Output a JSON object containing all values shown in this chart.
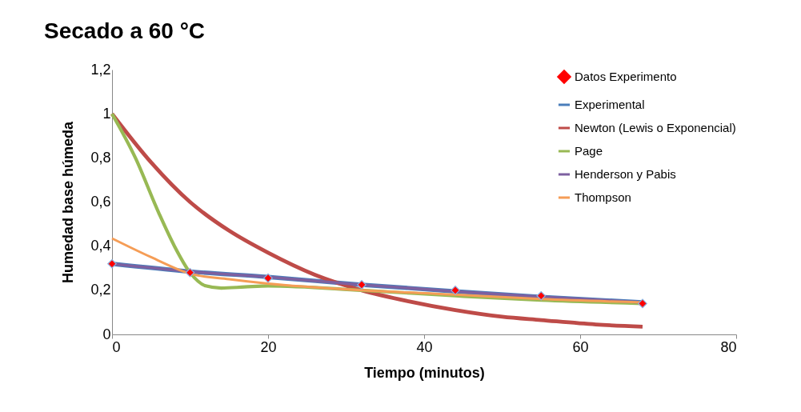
{
  "chart_data": {
    "type": "line",
    "title": "Secado a 60 °C",
    "xlabel": "Tiempo (minutos)",
    "ylabel": "Humedad base húmeda",
    "xlim": [
      0,
      80
    ],
    "xticks": [
      0,
      20,
      40,
      60,
      80
    ],
    "ylim": [
      0,
      1.2
    ],
    "yticks": [
      0,
      {
        "value": 0.2,
        "label": "0,2"
      },
      {
        "value": 0.4,
        "label": "0,4"
      },
      {
        "value": 0.6,
        "label": "0,6"
      },
      {
        "value": 0.8,
        "label": "0,8"
      },
      1,
      {
        "value": 1.2,
        "label": "1,2"
      }
    ],
    "grid": false,
    "legend": "top right",
    "line_style": "solid",
    "series": [
      {
        "name": "Datos Experimento",
        "type": "scatter",
        "marker": "diamond",
        "color": "#ff0000",
        "x": [
          0,
          10,
          20,
          32,
          44,
          55,
          68
        ],
        "values": [
          0.32,
          0.28,
          0.255,
          0.225,
          0.2,
          0.175,
          0.14
        ]
      },
      {
        "name": "Experimental",
        "color": "#4a7ebb",
        "x": [
          0,
          10,
          20,
          32,
          44,
          55,
          68
        ],
        "values": [
          0.32,
          0.285,
          0.26,
          0.225,
          0.195,
          0.17,
          0.145
        ]
      },
      {
        "name": "Newton (Lewis o Exponencial)",
        "color": "#be4b48",
        "x": [
          0,
          5,
          10,
          15,
          20,
          26,
          32,
          38,
          44,
          50,
          55,
          62,
          68
        ],
        "values": [
          1,
          0.78,
          0.6,
          0.47,
          0.37,
          0.27,
          0.2,
          0.15,
          0.11,
          0.08,
          0.065,
          0.045,
          0.035
        ]
      },
      {
        "name": "Page",
        "color": "#98b954",
        "x": [
          0,
          3,
          6,
          8,
          10,
          12,
          14,
          17,
          20,
          32,
          44,
          55,
          68
        ],
        "values": [
          1,
          0.8,
          0.55,
          0.4,
          0.28,
          0.22,
          0.21,
          0.215,
          0.22,
          0.2,
          0.175,
          0.155,
          0.14
        ]
      },
      {
        "name": "Henderson y Pabis",
        "color": "#7d60a0",
        "x": [
          0,
          10,
          20,
          32,
          44,
          55,
          68
        ],
        "values": [
          0.32,
          0.285,
          0.26,
          0.225,
          0.195,
          0.17,
          0.145
        ]
      },
      {
        "name": "Thompson",
        "color": "#f59d56",
        "x": [
          0,
          5,
          10,
          15,
          20,
          32,
          44,
          55,
          68
        ],
        "values": [
          0.435,
          0.35,
          0.275,
          0.25,
          0.23,
          0.2,
          0.18,
          0.16,
          0.145
        ]
      }
    ]
  }
}
